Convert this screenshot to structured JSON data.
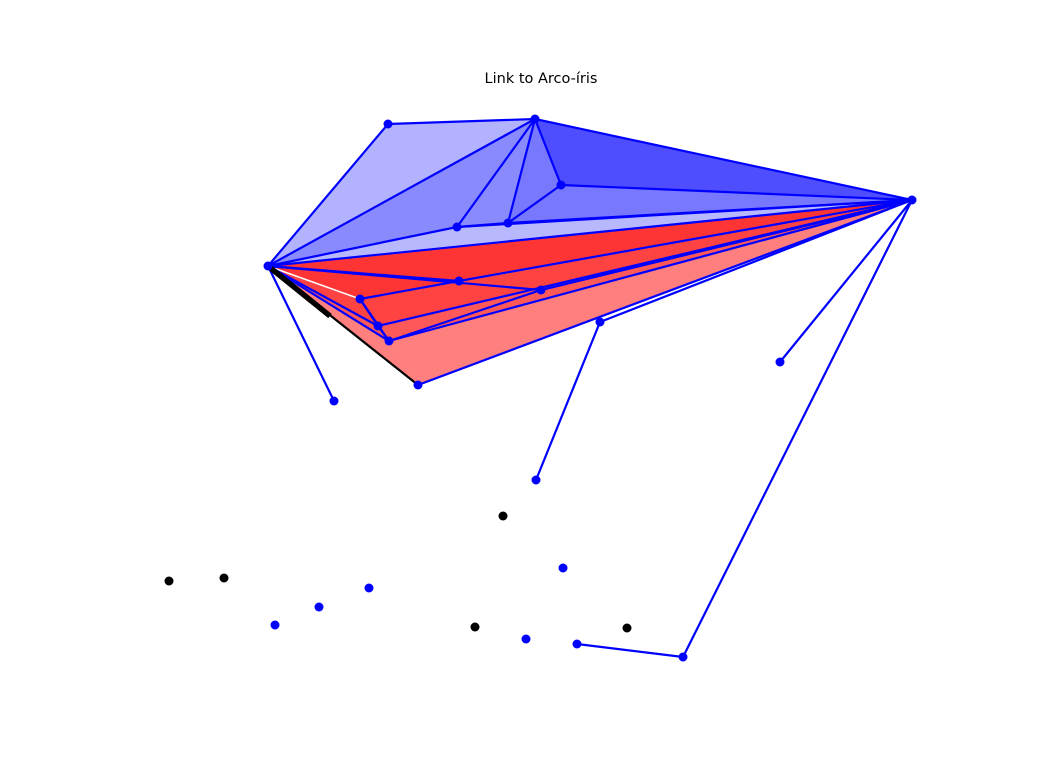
{
  "title": "Link to Arco-íris",
  "colors": {
    "node_blue": "#0000ff",
    "node_black": "#000000",
    "edge_blue": "#0000ff",
    "edge_black": "#000000",
    "fill_blue": "#0000ff",
    "fill_red": "#ff0000"
  },
  "nodes": [
    {
      "id": "n1",
      "color": "blue"
    },
    {
      "id": "n2",
      "color": "blue"
    },
    {
      "id": "n3",
      "color": "blue"
    },
    {
      "id": "n4",
      "color": "blue"
    },
    {
      "id": "n5",
      "color": "blue"
    },
    {
      "id": "n6",
      "color": "blue"
    },
    {
      "id": "n7",
      "color": "blue"
    },
    {
      "id": "n8",
      "color": "blue"
    },
    {
      "id": "n9",
      "color": "blue"
    },
    {
      "id": "n10",
      "color": "blue"
    },
    {
      "id": "n11",
      "color": "blue"
    },
    {
      "id": "n12",
      "color": "blue"
    },
    {
      "id": "n13",
      "color": "blue"
    },
    {
      "id": "n14",
      "color": "blue"
    },
    {
      "id": "n15",
      "color": "blue"
    },
    {
      "id": "n16",
      "color": "blue"
    },
    {
      "id": "n17",
      "color": "blue"
    },
    {
      "id": "n18",
      "color": "blue"
    },
    {
      "id": "n19",
      "color": "blue"
    },
    {
      "id": "n20",
      "color": "blue"
    },
    {
      "id": "n21",
      "color": "blue"
    },
    {
      "id": "n22",
      "color": "blue"
    },
    {
      "id": "n23",
      "color": "blue"
    },
    {
      "id": "n24",
      "color": "black"
    },
    {
      "id": "n25",
      "color": "black"
    },
    {
      "id": "n26",
      "color": "black"
    },
    {
      "id": "n27",
      "color": "black"
    },
    {
      "id": "n28",
      "color": "black"
    }
  ]
}
